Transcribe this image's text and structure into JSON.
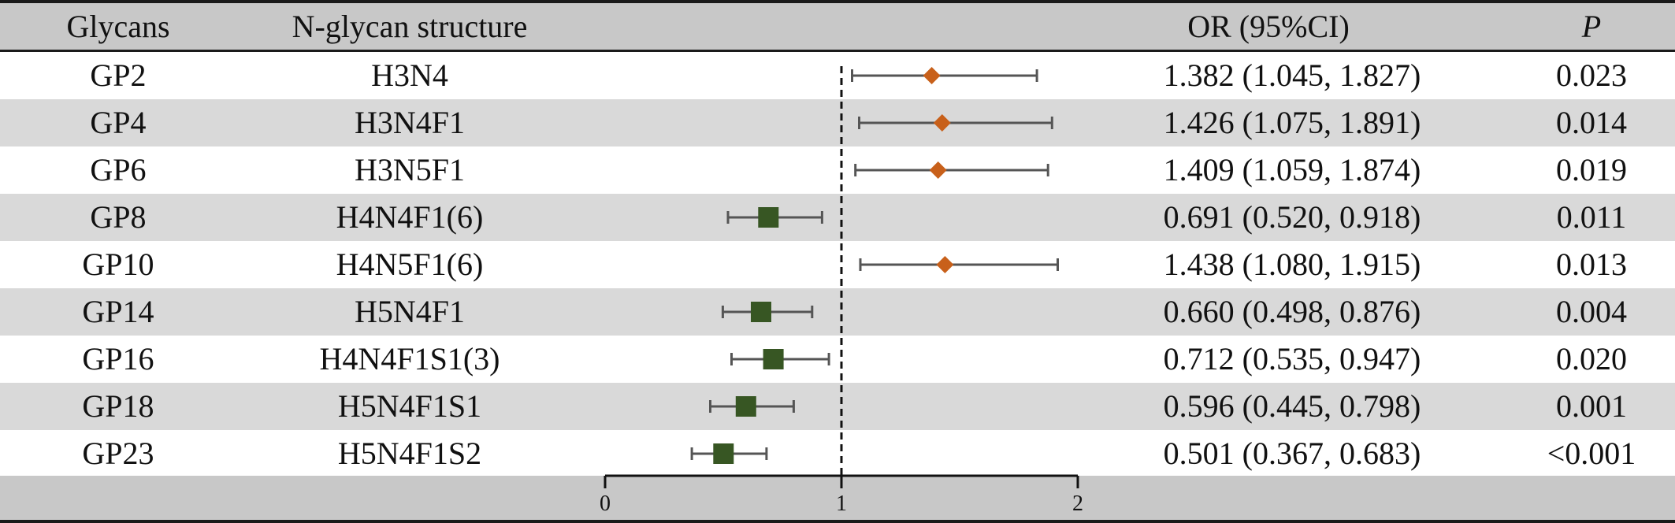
{
  "header": {
    "glycans": "Glycans",
    "structure": "N-glycan structure",
    "or_ci": "OR (95%CI)",
    "p": "P"
  },
  "rows": [
    {
      "glycan": "GP2",
      "structure": "H3N4",
      "or_text": "1.382 (1.045, 1.827)",
      "p": "0.023"
    },
    {
      "glycan": "GP4",
      "structure": "H3N4F1",
      "or_text": "1.426 (1.075, 1.891)",
      "p": "0.014"
    },
    {
      "glycan": "GP6",
      "structure": "H3N5F1",
      "or_text": "1.409 (1.059, 1.874)",
      "p": "0.019"
    },
    {
      "glycan": "GP8",
      "structure": "H4N4F1(6)",
      "or_text": "0.691 (0.520, 0.918)",
      "p": "0.011"
    },
    {
      "glycan": "GP10",
      "structure": "H4N5F1(6)",
      "or_text": "1.438 (1.080, 1.915)",
      "p": "0.013"
    },
    {
      "glycan": "GP14",
      "structure": "H5N4F1",
      "or_text": "0.660 (0.498, 0.876)",
      "p": "0.004"
    },
    {
      "glycan": "GP16",
      "structure": "H4N4F1S1(3)",
      "or_text": "0.712 (0.535, 0.947)",
      "p": "0.020"
    },
    {
      "glycan": "GP18",
      "structure": "H5N4F1S1",
      "or_text": "0.596 (0.445, 0.798)",
      "p": "0.001"
    },
    {
      "glycan": "GP23",
      "structure": "H5N4F1S2",
      "or_text": "0.501 (0.367, 0.683)",
      "p": "<0.001"
    }
  ],
  "chart_data": {
    "type": "forest",
    "categories": [
      "GP2",
      "GP4",
      "GP6",
      "GP8",
      "GP10",
      "GP14",
      "GP16",
      "GP18",
      "GP23"
    ],
    "estimates": [
      1.382,
      1.426,
      1.409,
      0.691,
      1.438,
      0.66,
      0.712,
      0.596,
      0.501
    ],
    "lower": [
      1.045,
      1.075,
      1.059,
      0.52,
      1.08,
      0.498,
      0.535,
      0.445,
      0.367
    ],
    "upper": [
      1.827,
      1.891,
      1.874,
      0.918,
      1.915,
      0.876,
      0.947,
      0.798,
      0.683
    ],
    "reference_line": 1,
    "xlim": [
      0,
      2
    ],
    "x_ticks": [
      "0",
      "1",
      "2"
    ],
    "marker_rule": "diamond if estimate > 1, square if estimate < 1",
    "colors": {
      "risk": "#C8601A",
      "protective": "#375623",
      "ci_line": "#555555",
      "reference": "#111111"
    }
  },
  "style": {
    "shade": "#D9D9D9",
    "header_bg": "#C8C8C8",
    "rule": "#1a1a1a"
  }
}
